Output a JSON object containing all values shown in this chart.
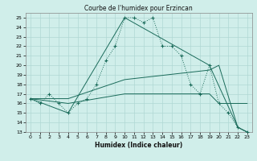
{
  "title": "Courbe de l'humidex pour Erzincan",
  "xlabel": "Humidex (Indice chaleur)",
  "xlim": [
    -0.5,
    23.5
  ],
  "ylim": [
    13,
    25.5
  ],
  "yticks": [
    13,
    14,
    15,
    16,
    17,
    18,
    19,
    20,
    21,
    22,
    23,
    24,
    25
  ],
  "xticks": [
    0,
    1,
    2,
    3,
    4,
    5,
    6,
    7,
    8,
    9,
    10,
    11,
    12,
    13,
    14,
    15,
    16,
    17,
    18,
    19,
    20,
    21,
    22,
    23
  ],
  "bg_color": "#d0eeea",
  "grid_color": "#b0d8d4",
  "line_color": "#1a6b5a",
  "series0": {
    "x": [
      0,
      1,
      2,
      3,
      4,
      5,
      6,
      7,
      8,
      9,
      10,
      11,
      12,
      13,
      14,
      15,
      16,
      17,
      18,
      19,
      20,
      21,
      22,
      23
    ],
    "y": [
      16.5,
      16.0,
      17.0,
      16.0,
      15.0,
      16.0,
      16.5,
      18.0,
      20.5,
      22.0,
      25.0,
      25.0,
      24.5,
      25.0,
      22.0,
      22.0,
      21.0,
      18.0,
      17.0,
      20.0,
      16.0,
      15.0,
      13.5,
      13.0
    ]
  },
  "solid_series": [
    {
      "x": [
        0,
        4,
        10,
        19,
        22,
        23
      ],
      "y": [
        16.5,
        15.0,
        25.0,
        20.0,
        13.5,
        13.0
      ]
    },
    {
      "x": [
        0,
        4,
        10,
        19,
        20,
        22,
        23
      ],
      "y": [
        16.5,
        16.0,
        17.0,
        17.0,
        16.0,
        16.0,
        16.0
      ]
    },
    {
      "x": [
        0,
        4,
        10,
        19,
        20,
        22,
        23
      ],
      "y": [
        16.5,
        16.5,
        18.5,
        19.5,
        20.0,
        13.5,
        13.0
      ]
    }
  ]
}
